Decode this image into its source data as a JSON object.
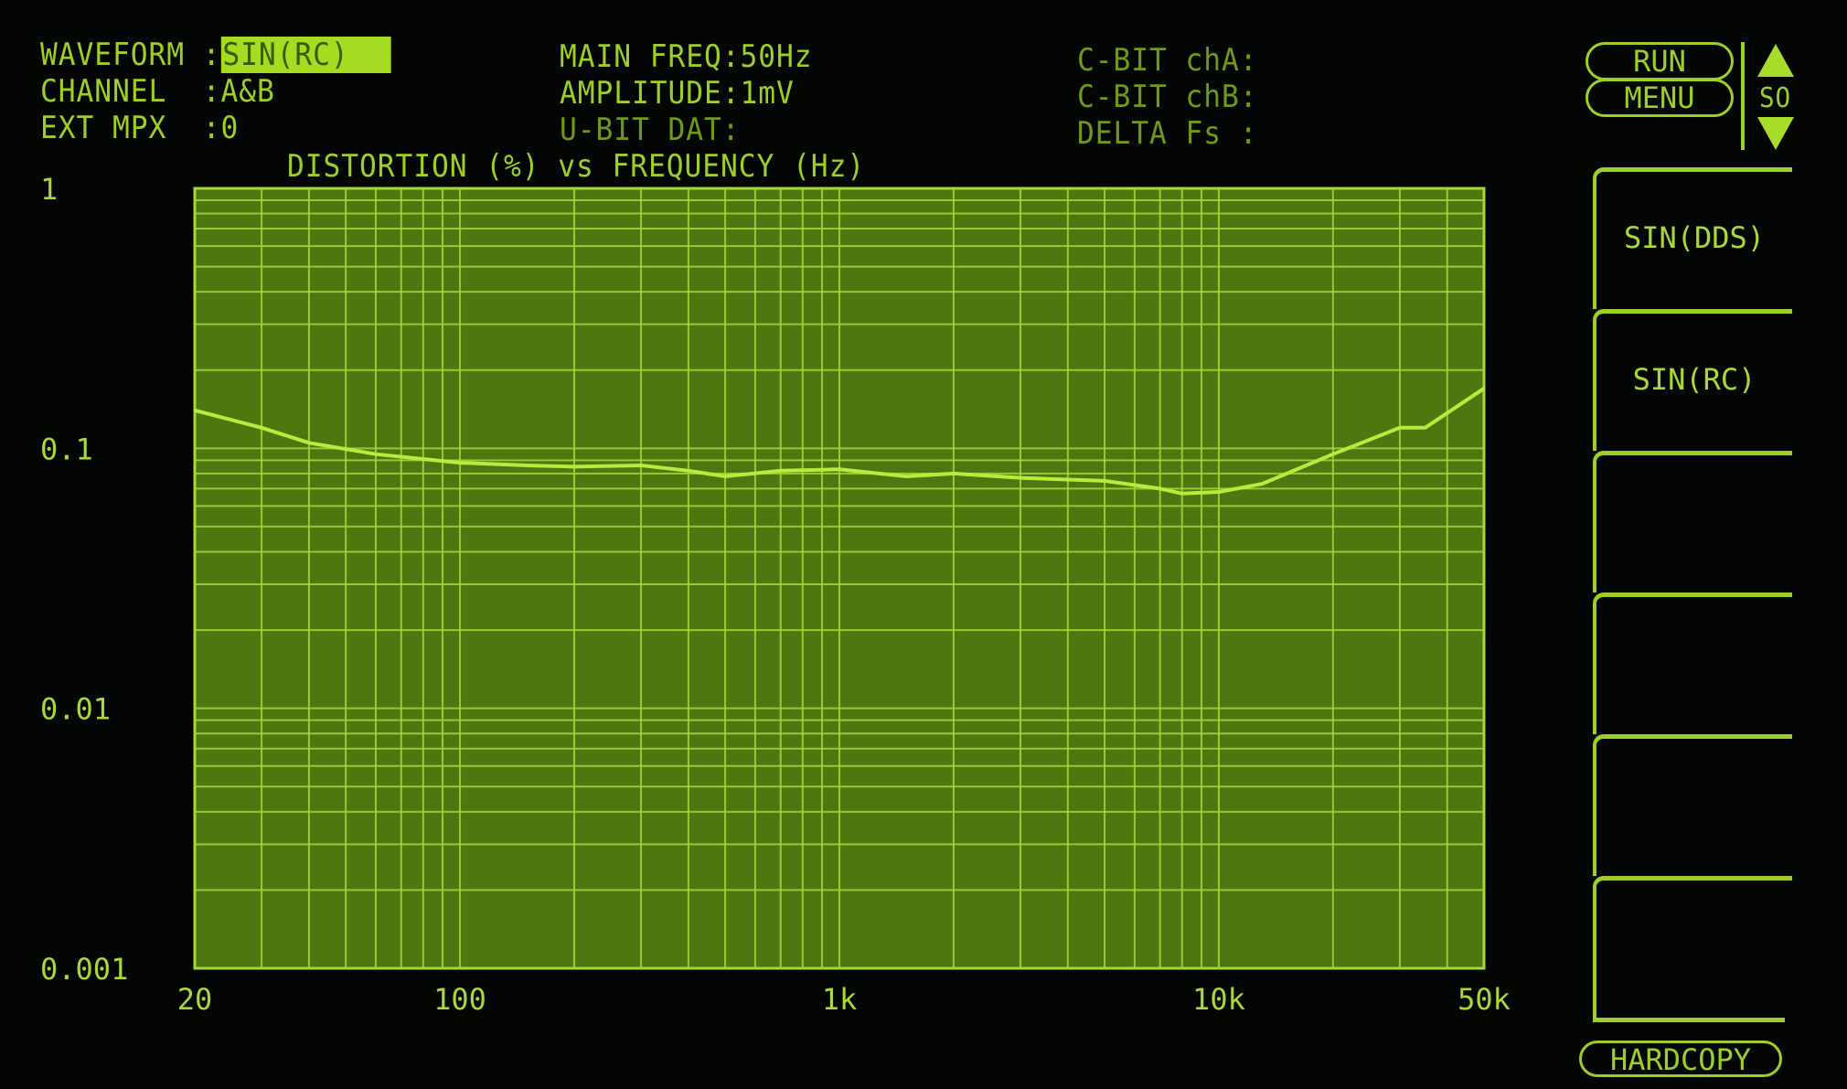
{
  "header": {
    "waveform_label": "WAVEFORM :",
    "waveform_value": "SIN(RC)",
    "channel_label": "CHANNEL  :",
    "channel_value": "A&B",
    "ext_mpx_label": "EXT MPX  :",
    "ext_mpx_value": "0",
    "main_freq": "MAIN FREQ:50Hz",
    "amplitude": "AMPLITUDE:1mV",
    "u_bit": "U-BIT DAT:",
    "c_bit_a": "C-BIT chA:",
    "c_bit_b": "C-BIT chB:",
    "delta_fs": "DELTA Fs :"
  },
  "controls": {
    "run": "RUN",
    "menu": "MENU",
    "scroll_label": "SO",
    "hardcopy": "HARDCOPY",
    "up_icon": "triangle-up",
    "down_icon": "triangle-down"
  },
  "softkeys": [
    "SIN(DDS)",
    "SIN(RC)",
    "",
    "",
    "",
    ""
  ],
  "colors": {
    "trace": "#b8ec3c",
    "plot_bg": "#4d7810",
    "grid": "#a6d838",
    "text": "#9ccf2a",
    "highlight": "#a4dc22"
  },
  "chart_data": {
    "type": "line",
    "title": "DISTORTION (%) vs FREQUENCY (Hz)",
    "x_scale": "log",
    "y_scale": "log",
    "xlim": [
      20,
      50000
    ],
    "ylim": [
      0.001,
      1
    ],
    "x_ticks": [
      "20",
      "100",
      "1k",
      "10k",
      "50k"
    ],
    "y_ticks": [
      "1",
      "0.1",
      "0.01",
      "0.001"
    ],
    "grid": true,
    "series": [
      {
        "x": [
          20,
          30,
          40,
          60,
          100,
          150,
          200,
          300,
          400,
          500,
          700,
          1000,
          1500,
          2000,
          3000,
          5000,
          7000,
          8000,
          10000,
          13000,
          20000,
          30000,
          35000,
          50000
        ],
        "y": [
          0.14,
          0.12,
          0.105,
          0.095,
          0.088,
          0.086,
          0.085,
          0.086,
          0.082,
          0.078,
          0.082,
          0.083,
          0.078,
          0.08,
          0.077,
          0.075,
          0.07,
          0.067,
          0.068,
          0.073,
          0.095,
          0.12,
          0.12,
          0.17
        ]
      }
    ]
  }
}
